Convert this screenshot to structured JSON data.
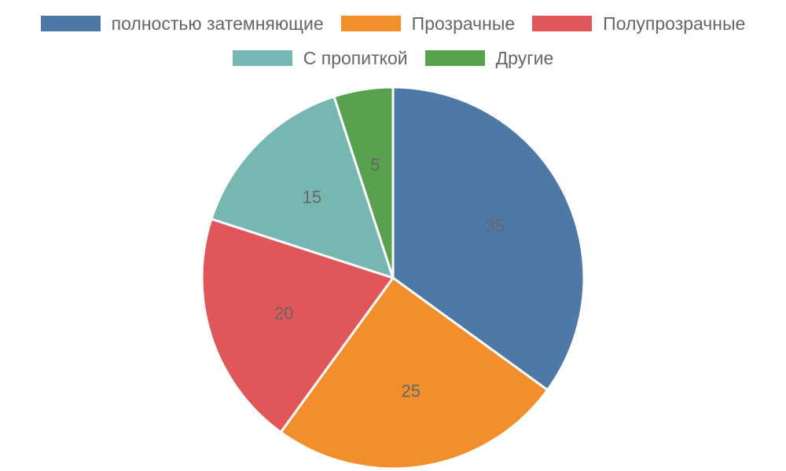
{
  "chart_data": {
    "type": "pie",
    "categories": [
      "полностью затемняющие",
      "Прозрачные",
      "Полупрозрачные",
      "С пропиткой",
      "Другие"
    ],
    "values": [
      35,
      25,
      20,
      15,
      5
    ],
    "colors": [
      "#4e79a7",
      "#f28e2c",
      "#e15759",
      "#76b7b2",
      "#59a14f"
    ],
    "data_labels": [
      "35",
      "25",
      "20",
      "15",
      "5"
    ],
    "legend_position": "top",
    "start_angle": "12 o'clock",
    "direction": "clockwise"
  }
}
